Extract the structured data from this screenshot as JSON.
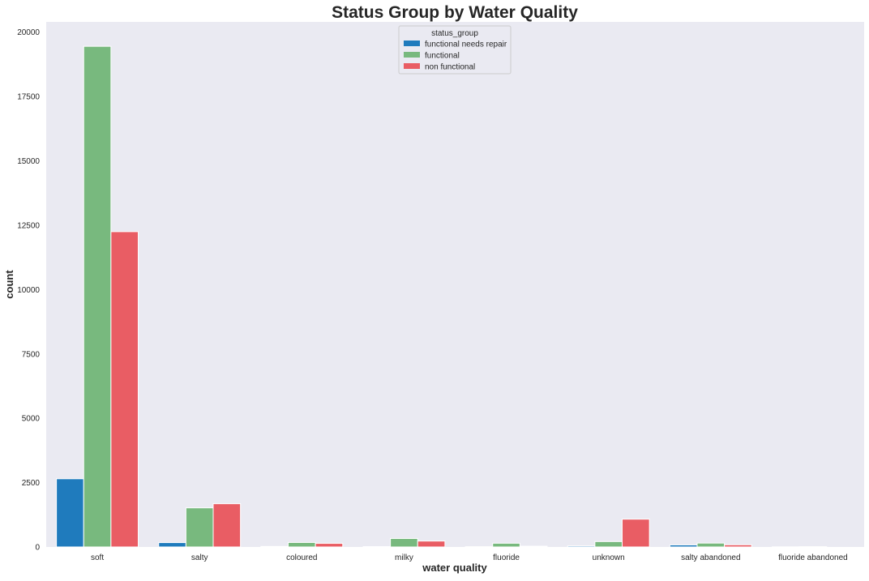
{
  "chart_data": {
    "type": "bar",
    "title": "Status Group by Water Quality",
    "xlabel": "water quality",
    "ylabel": "count",
    "categories": [
      "soft",
      "salty",
      "coloured",
      "milky",
      "fluoride",
      "unknown",
      "salty abandoned",
      "fluoride abandoned"
    ],
    "yticks": [
      0,
      2500,
      5000,
      7500,
      10000,
      12500,
      15000,
      17500,
      20000
    ],
    "ylim": [
      0,
      20400
    ],
    "grid": false,
    "legend": {
      "title": "status_group",
      "placement": "top-center"
    },
    "series": [
      {
        "name": "functional needs repair",
        "color": "#1f7bbd",
        "values": [
          2650,
          170,
          20,
          15,
          10,
          40,
          80,
          5
        ]
      },
      {
        "name": "functional",
        "color": "#78b97e",
        "values": [
          19450,
          1520,
          175,
          330,
          145,
          210,
          150,
          10
        ]
      },
      {
        "name": "non functional",
        "color": "#e95d64",
        "values": [
          12250,
          1680,
          140,
          230,
          30,
          1080,
          85,
          0
        ]
      }
    ]
  }
}
